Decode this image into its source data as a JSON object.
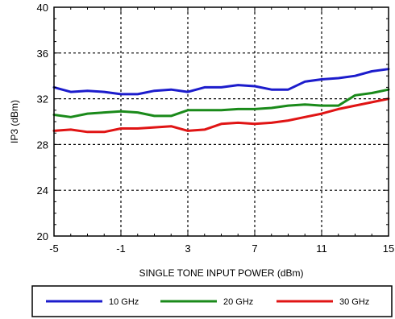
{
  "chart_data": {
    "type": "line",
    "title": "",
    "xlabel": "SINGLE TONE INPUT POWER (dBm)",
    "ylabel": "IP3 (dBm)",
    "xlim": [
      -5,
      15
    ],
    "ylim": [
      20,
      40
    ],
    "xticks": [
      -5,
      -1,
      3,
      7,
      11,
      15
    ],
    "yticks": [
      20,
      24,
      28,
      32,
      36,
      40
    ],
    "xtick_labels": [
      "-5",
      "-1",
      "3",
      "7",
      "11",
      "15"
    ],
    "ytick_labels": [
      "20",
      "24",
      "28",
      "32",
      "36",
      "40"
    ],
    "grid": true,
    "legend_position": "bottom",
    "series": [
      {
        "name": "10 GHz",
        "color": "#1c1ccc",
        "x": [
          -5,
          -4,
          -3,
          -2,
          -1,
          0,
          1,
          2,
          3,
          4,
          5,
          6,
          7,
          8,
          9,
          10,
          11,
          12,
          13,
          14,
          15
        ],
        "y": [
          33.0,
          32.6,
          32.7,
          32.6,
          32.4,
          32.4,
          32.7,
          32.8,
          32.6,
          33.0,
          33.0,
          33.2,
          33.1,
          32.8,
          32.8,
          33.5,
          33.7,
          33.8,
          34.0,
          34.4,
          34.6
        ]
      },
      {
        "name": "20 GHz",
        "color": "#1a8a1a",
        "x": [
          -5,
          -4,
          -3,
          -2,
          -1,
          0,
          1,
          2,
          3,
          4,
          5,
          6,
          7,
          8,
          9,
          10,
          11,
          12,
          13,
          14,
          15
        ],
        "y": [
          30.6,
          30.4,
          30.7,
          30.8,
          30.9,
          30.8,
          30.5,
          30.5,
          31.0,
          31.0,
          31.0,
          31.1,
          31.1,
          31.2,
          31.4,
          31.5,
          31.4,
          31.4,
          32.3,
          32.5,
          32.8
        ]
      },
      {
        "name": "30 GHz",
        "color": "#e01414",
        "x": [
          -5,
          -4,
          -3,
          -2,
          -1,
          0,
          1,
          2,
          3,
          4,
          5,
          6,
          7,
          8,
          9,
          10,
          11,
          12,
          13,
          14,
          15
        ],
        "y": [
          29.2,
          29.3,
          29.1,
          29.1,
          29.4,
          29.4,
          29.5,
          29.6,
          29.2,
          29.3,
          29.8,
          29.9,
          29.8,
          29.9,
          30.1,
          30.4,
          30.7,
          31.1,
          31.4,
          31.7,
          32.0
        ]
      }
    ]
  }
}
